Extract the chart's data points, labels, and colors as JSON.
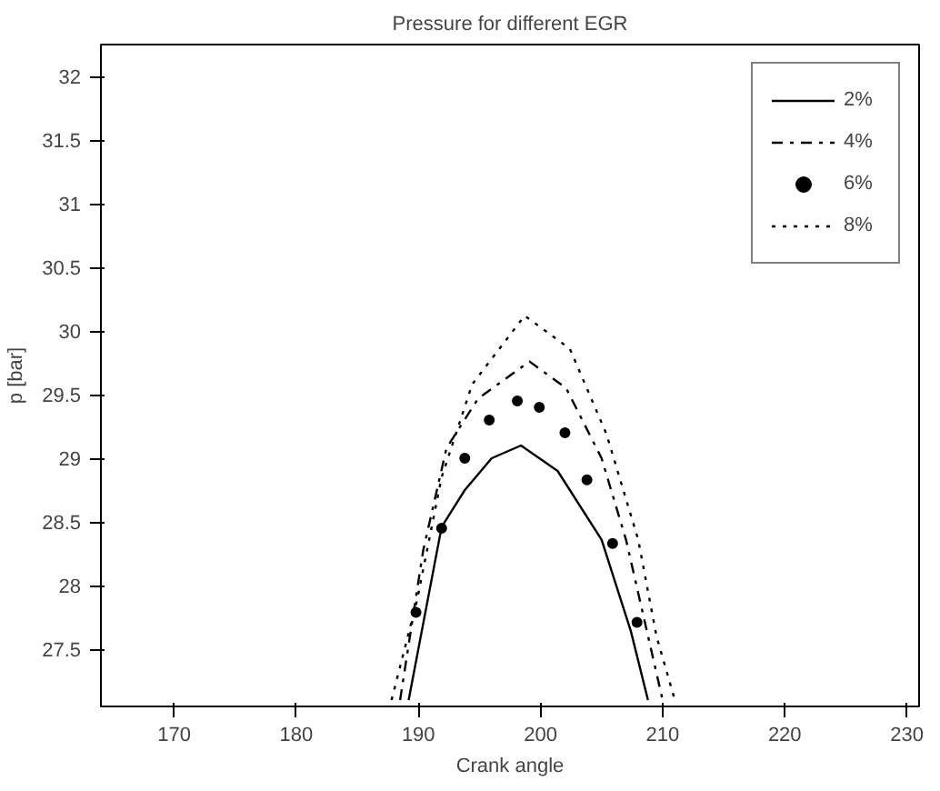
{
  "chart_data": {
    "type": "line",
    "title": "Pressure for different EGR",
    "xlabel": "Crank angle",
    "ylabel": "p [bar]",
    "xlim": [
      164,
      231
    ],
    "xticks": [
      170,
      180,
      190,
      200,
      210,
      220,
      230
    ],
    "ylim": [
      27.05,
      32.25
    ],
    "yticks": [
      27.5,
      28,
      28.5,
      29,
      29.5,
      30,
      30.5,
      31,
      31.5,
      32
    ],
    "grid": false,
    "legend": "top right",
    "series": [
      {
        "name": "2%",
        "color": "#000000",
        "line_style": "solid",
        "marker": "none",
        "x": [
          189.2,
          191.9,
          193.8,
          196.0,
          198.4,
          201.4,
          205.0,
          207.4,
          208.8
        ],
        "values": [
          27.1,
          28.46,
          28.75,
          29.0,
          29.1,
          28.9,
          28.36,
          27.64,
          27.1
        ]
      },
      {
        "name": "4%",
        "color": "#000000",
        "line_style": "dashdot",
        "marker": "none",
        "x": [
          188.5,
          190.4,
          192.3,
          194.9,
          199.1,
          202.1,
          205.0,
          207.0,
          210.0
        ],
        "values": [
          27.1,
          28.28,
          29.08,
          29.47,
          29.76,
          29.55,
          29.0,
          28.36,
          27.1
        ]
      },
      {
        "name": "6%",
        "color": "#000000",
        "type": "scatter",
        "marker": "circle",
        "x": [
          189.8,
          191.9,
          193.8,
          195.8,
          198.1,
          199.9,
          202.0,
          203.8,
          205.9,
          207.9
        ],
        "values": [
          27.79,
          28.45,
          29.0,
          29.3,
          29.45,
          29.4,
          29.2,
          28.83,
          28.33,
          27.71
        ]
      },
      {
        "name": "8%",
        "color": "#000000",
        "line_style": "dotted",
        "marker": "none",
        "x": [
          187.8,
          189.9,
          191.9,
          194.4,
          198.7,
          202.4,
          205.4,
          208.0,
          209.5,
          211.0
        ],
        "values": [
          27.1,
          27.89,
          28.85,
          29.58,
          30.12,
          29.86,
          29.19,
          28.36,
          27.6,
          27.1
        ]
      }
    ]
  }
}
